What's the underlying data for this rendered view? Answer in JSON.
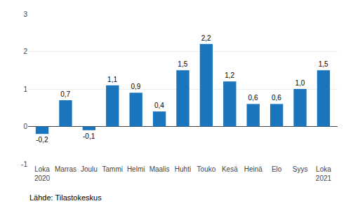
{
  "chart_data": {
    "type": "bar",
    "categories": [
      "Loka\n2020",
      "Marras",
      "Joulu",
      "Tammi",
      "Helmi",
      "Maalis",
      "Huhti",
      "Touko",
      "Kesä",
      "Heinä",
      "Elo",
      "Syys",
      "Loka\n2021"
    ],
    "values": [
      -0.2,
      0.7,
      -0.1,
      1.1,
      0.9,
      0.4,
      1.5,
      2.2,
      1.2,
      0.6,
      0.6,
      1.0,
      1.5
    ],
    "value_labels": [
      "-0,2",
      "0,7",
      "-0,1",
      "1,1",
      "0,9",
      "0,4",
      "1,5",
      "2,2",
      "1,2",
      "0,6",
      "0,6",
      "1,0",
      "1,5"
    ],
    "data_labels": true,
    "color": "#1b75bc",
    "ylim": [
      -1,
      3
    ],
    "yticks": [
      -1,
      0,
      1,
      2,
      3
    ],
    "grid": true,
    "annotations": [
      "Lähde: Tilastokeskus"
    ]
  }
}
